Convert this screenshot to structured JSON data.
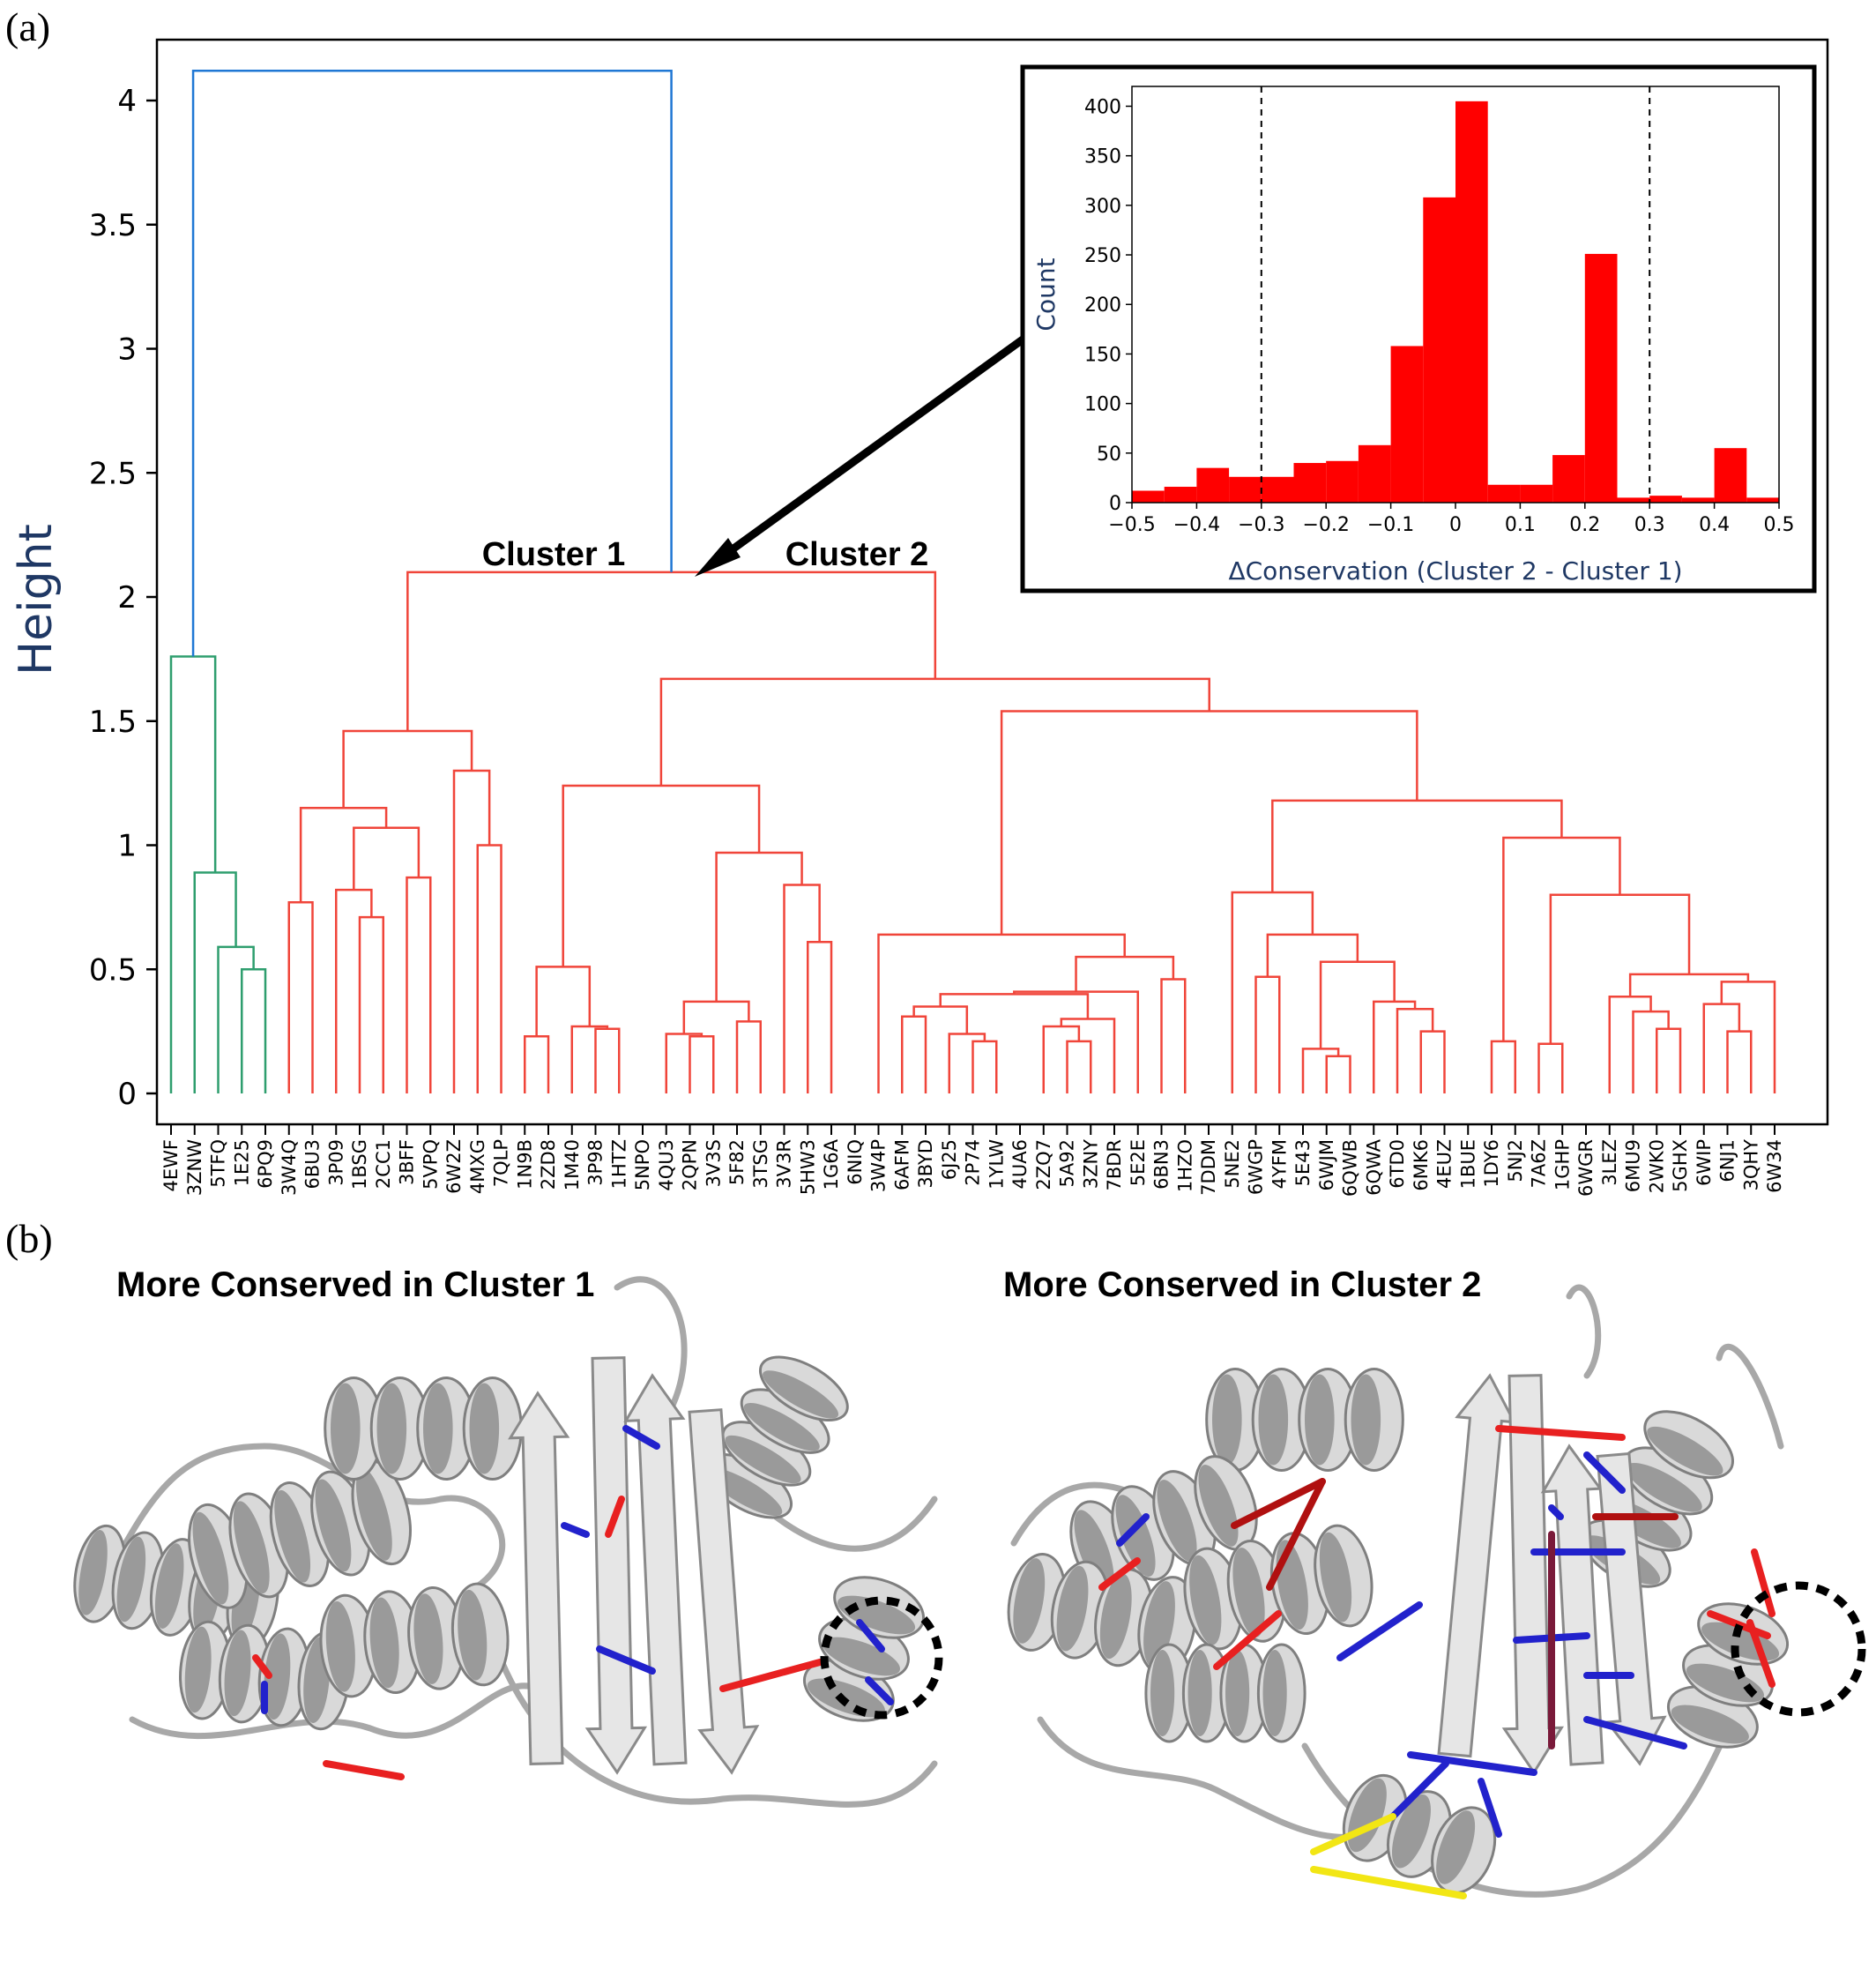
{
  "panels": {
    "a": "(a)",
    "b": "(b)"
  },
  "chart_data": [
    {
      "type": "dendrogram",
      "ylabel": "Height",
      "ylim": [
        0,
        4.2
      ],
      "yticks": [
        "0",
        "0.5",
        "1",
        "1.5",
        "2",
        "2.5",
        "3",
        "3.5",
        "4"
      ],
      "leaves": [
        "4EWF",
        "3ZNW",
        "5TFQ",
        "1E25",
        "6PQ9",
        "3W4Q",
        "6BU3",
        "3P09",
        "1BSG",
        "2CC1",
        "3BFF",
        "5VPQ",
        "6W2Z",
        "4MXG",
        "7QLP",
        "1N9B",
        "2ZD8",
        "1M40",
        "3P98",
        "1HTZ",
        "5NPO",
        "4QU3",
        "2QPN",
        "3V3S",
        "5F82",
        "3TSG",
        "3V3R",
        "5HW3",
        "1G6A",
        "6NIQ",
        "3W4P",
        "6AFM",
        "3BYD",
        "6J25",
        "2P74",
        "1YLW",
        "4UA6",
        "2ZQ7",
        "5A92",
        "3ZNY",
        "7BDR",
        "5E2E",
        "6BN3",
        "1HZO",
        "7DDM",
        "5NE2",
        "6WGP",
        "4YFM",
        "5E43",
        "6WJM",
        "6QWB",
        "6QWA",
        "6TD0",
        "6MK6",
        "4EUZ",
        "1BUE",
        "1DY6",
        "5NJ2",
        "7A6Z",
        "1GHP",
        "6WGR",
        "3LEZ",
        "6MU9",
        "2WK0",
        "5GHX",
        "6WIP",
        "6NJ1",
        "3QHY",
        "6W34"
      ],
      "cluster_labels": [
        "Cluster 1",
        "Cluster 2"
      ],
      "colors": {
        "root": "#1f77d4",
        "outgroup": "#2e9e6e",
        "main": "#f0453a"
      },
      "merge_heights": {
        "root": 4.12,
        "clusters": 2.1,
        "outgroup": 1.76,
        "cluster1": 1.46,
        "cluster2_main": 1.67
      }
    },
    {
      "type": "bar",
      "xlabel": "ΔConservation (Cluster 2 - Cluster 1)",
      "ylabel": "Count",
      "xlim": [
        -0.5,
        0.5
      ],
      "ylim": [
        0,
        420
      ],
      "xticks": [
        "−0.5",
        "−0.4",
        "−0.3",
        "−0.2",
        "−0.1",
        "0",
        "0.1",
        "0.2",
        "0.3",
        "0.4",
        "0.5"
      ],
      "yticks": [
        "0",
        "50",
        "100",
        "150",
        "200",
        "250",
        "300",
        "350",
        "400"
      ],
      "bin_width": 0.05,
      "bin_starts": [
        -0.5,
        -0.45,
        -0.4,
        -0.35,
        -0.3,
        -0.25,
        -0.2,
        -0.15,
        -0.1,
        -0.05,
        0,
        0.05,
        0.1,
        0.15,
        0.2,
        0.25,
        0.3,
        0.35,
        0.4,
        0.45
      ],
      "values": [
        12,
        16,
        35,
        26,
        26,
        40,
        42,
        58,
        158,
        308,
        405,
        18,
        18,
        48,
        251,
        5,
        7,
        5,
        55,
        5
      ],
      "thresholds": [
        -0.3,
        0.3
      ],
      "bar_color": "#ff0000"
    }
  ],
  "structures": {
    "left_title": "More Conserved in Cluster 1",
    "right_title": "More Conserved in Cluster 2"
  }
}
